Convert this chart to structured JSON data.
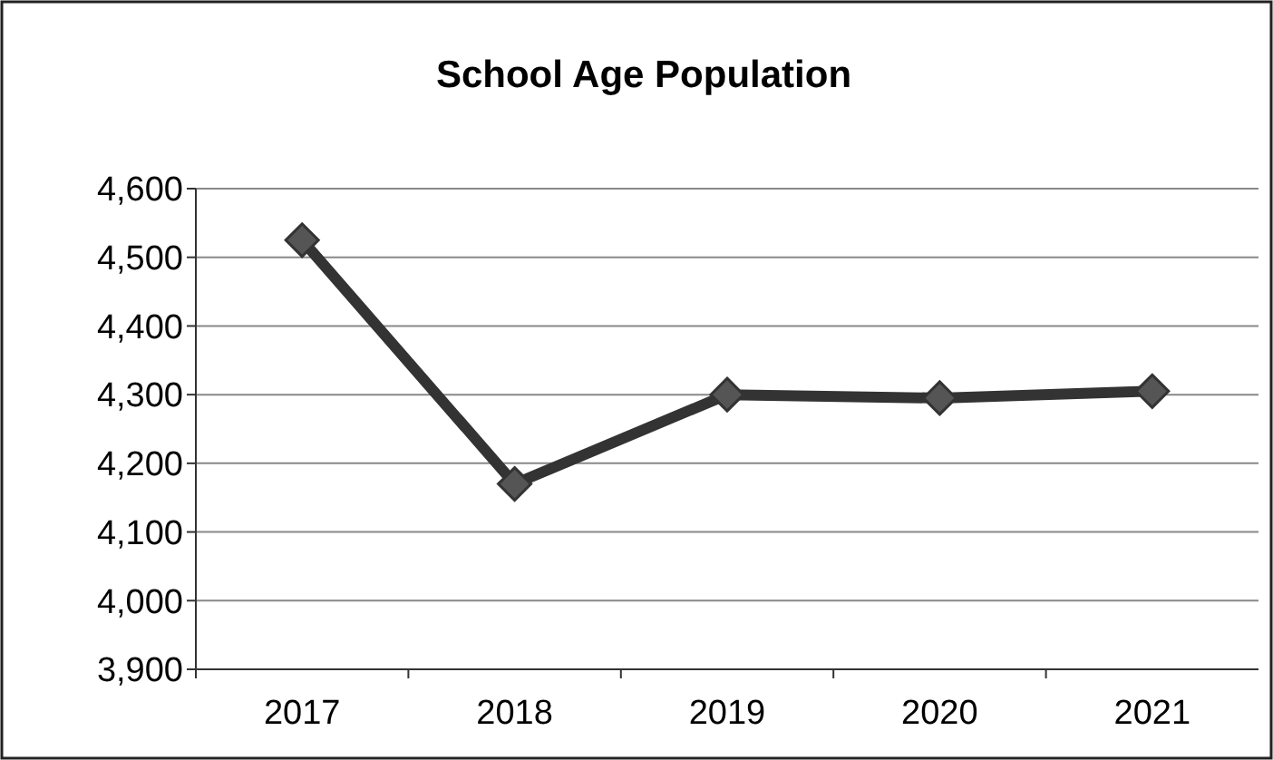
{
  "chart_data": {
    "type": "line",
    "title": "School Age Population",
    "categories": [
      "2017",
      "2018",
      "2019",
      "2020",
      "2021"
    ],
    "series": [
      {
        "color": "#333333",
        "values": [
          4525,
          4170,
          4300,
          4295,
          4305
        ]
      }
    ],
    "ylim": [
      3900,
      4600
    ],
    "yticks": [
      {
        "value": 3900,
        "label": "3,900"
      },
      {
        "value": 4000,
        "label": "4,000"
      },
      {
        "value": 4100,
        "label": "4,100"
      },
      {
        "value": 4200,
        "label": "4,200"
      },
      {
        "value": 4300,
        "label": "4,300"
      },
      {
        "value": 4400,
        "label": "4,400"
      },
      {
        "value": 4500,
        "label": "4,500"
      },
      {
        "value": 4600,
        "label": "4,600"
      }
    ],
    "grid": "y",
    "marker": "diamond",
    "line_style": "solid"
  }
}
